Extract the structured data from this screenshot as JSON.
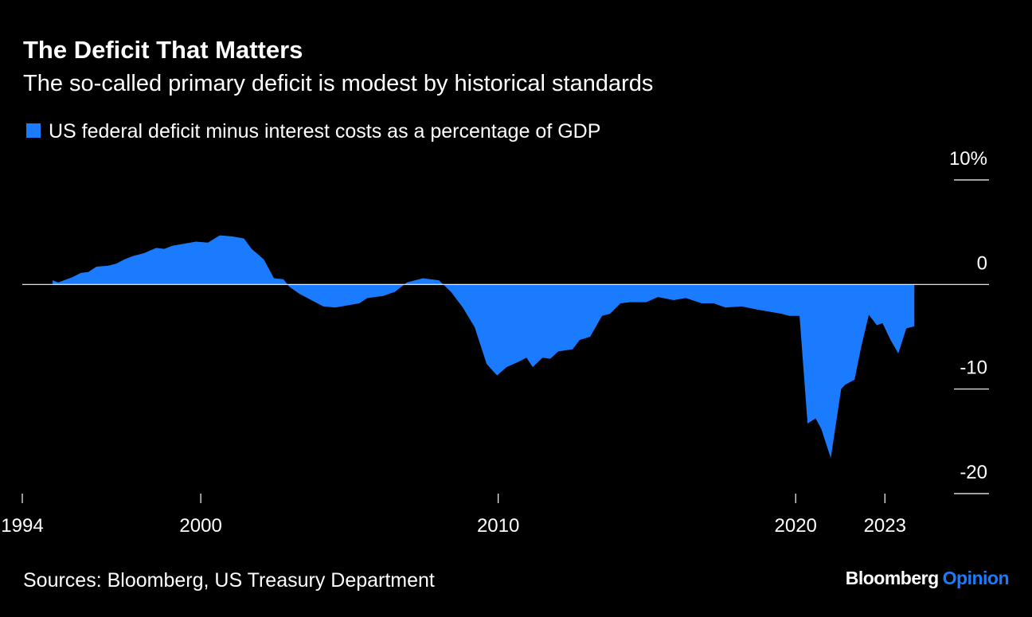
{
  "chart_data": {
    "type": "area",
    "title": "The Deficit That Matters",
    "subtitle": "The so-called primary deficit is modest by historical standards",
    "source": "Sources: Bloomberg, US Treasury Department",
    "brand_name": "Bloomberg",
    "brand_section": "Opinion",
    "x": [
      1995.02,
      1995.21,
      1995.69,
      1995.96,
      1996.22,
      1996.49,
      1996.89,
      1997.16,
      1997.43,
      1997.7,
      1998.1,
      1998.5,
      1998.77,
      1999.04,
      1999.44,
      1999.84,
      2000.24,
      2000.64,
      2001.04,
      2001.45,
      2001.71,
      2002.12,
      2002.46,
      2002.78,
      2002.97,
      2003.32,
      2003.72,
      2004.12,
      2004.52,
      2004.93,
      2005.33,
      2005.6,
      2006.13,
      2006.53,
      2006.93,
      2007.47,
      2008.01,
      2008.41,
      2008.81,
      2009.21,
      2009.61,
      2009.96,
      2010.28,
      2010.68,
      2010.95,
      2011.16,
      2011.49,
      2011.75,
      2012.02,
      2012.5,
      2012.74,
      2013.09,
      2013.49,
      2013.76,
      2014.11,
      2014.43,
      2014.97,
      2015.37,
      2015.9,
      2016.31,
      2016.84,
      2017.24,
      2017.64,
      2018.18,
      2018.71,
      2019.12,
      2019.52,
      2019.79,
      2020.13,
      2020.4,
      2020.67,
      2020.86,
      2021.18,
      2021.53,
      2021.66,
      2021.98,
      2022.2,
      2022.46,
      2022.73,
      2022.92,
      2023.19,
      2023.45,
      2023.72,
      2023.99
    ],
    "series": [
      {
        "name": "US federal deficit minus interest costs as a percentage of GDP",
        "color": "#1a7bff",
        "values": [
          0.4,
          0.2,
          0.7,
          1.1,
          1.2,
          1.7,
          1.8,
          2.0,
          2.4,
          2.7,
          3.0,
          3.5,
          3.4,
          3.7,
          3.9,
          4.1,
          4.0,
          4.7,
          4.6,
          4.4,
          3.4,
          2.4,
          0.6,
          0.5,
          -0.2,
          -0.9,
          -1.5,
          -2.1,
          -2.2,
          -2.0,
          -1.8,
          -1.3,
          -1.1,
          -0.7,
          0.2,
          0.6,
          0.4,
          -0.7,
          -2.2,
          -4.1,
          -7.6,
          -8.7,
          -7.9,
          -7.4,
          -7.0,
          -7.9,
          -7.0,
          -7.1,
          -6.4,
          -6.2,
          -5.3,
          -5.0,
          -3.0,
          -2.8,
          -1.8,
          -1.7,
          -1.7,
          -1.2,
          -1.5,
          -1.3,
          -1.8,
          -1.8,
          -2.2,
          -2.1,
          -2.4,
          -2.6,
          -2.8,
          -3.0,
          -3.0,
          -13.3,
          -12.8,
          -13.8,
          -16.6,
          -10.0,
          -9.6,
          -9.1,
          -6.0,
          -2.9,
          -3.9,
          -3.7,
          -5.3,
          -6.6,
          -4.2,
          -4.0
        ]
      }
    ],
    "xlim": [
      1994,
      2026.5
    ],
    "xticks": [
      1994,
      2000,
      2010,
      2020,
      2023
    ],
    "ylim": [
      -20,
      10
    ],
    "yticks": [
      {
        "value": 10,
        "label": "10%"
      },
      0,
      -10,
      -20
    ]
  }
}
